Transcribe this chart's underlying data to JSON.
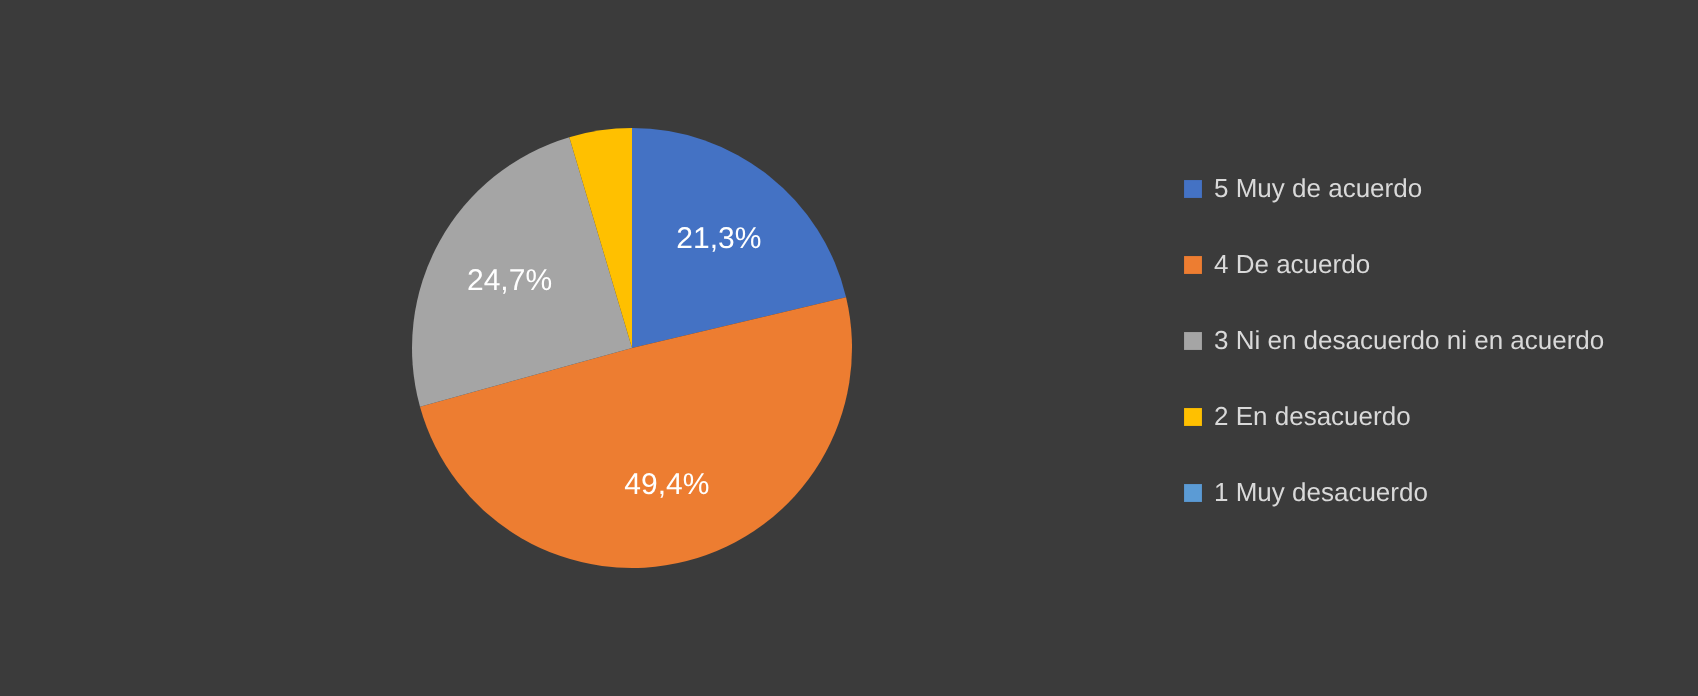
{
  "chart_data": {
    "type": "pie",
    "categories": [
      "5 Muy de acuerdo",
      "4 De acuerdo",
      "3 Ni en desacuerdo ni en acuerdo",
      "2 En desacuerdo",
      "1 Muy desacuerdo"
    ],
    "values": [
      21.3,
      49.4,
      24.7,
      4.6,
      0
    ],
    "colors": [
      "#4472c4",
      "#ed7d31",
      "#a5a5a5",
      "#ffc000",
      "#5b9bd5"
    ],
    "value_labels": [
      "21,3%",
      "49,4%",
      "24,7%",
      null,
      null
    ],
    "legend": "right"
  }
}
